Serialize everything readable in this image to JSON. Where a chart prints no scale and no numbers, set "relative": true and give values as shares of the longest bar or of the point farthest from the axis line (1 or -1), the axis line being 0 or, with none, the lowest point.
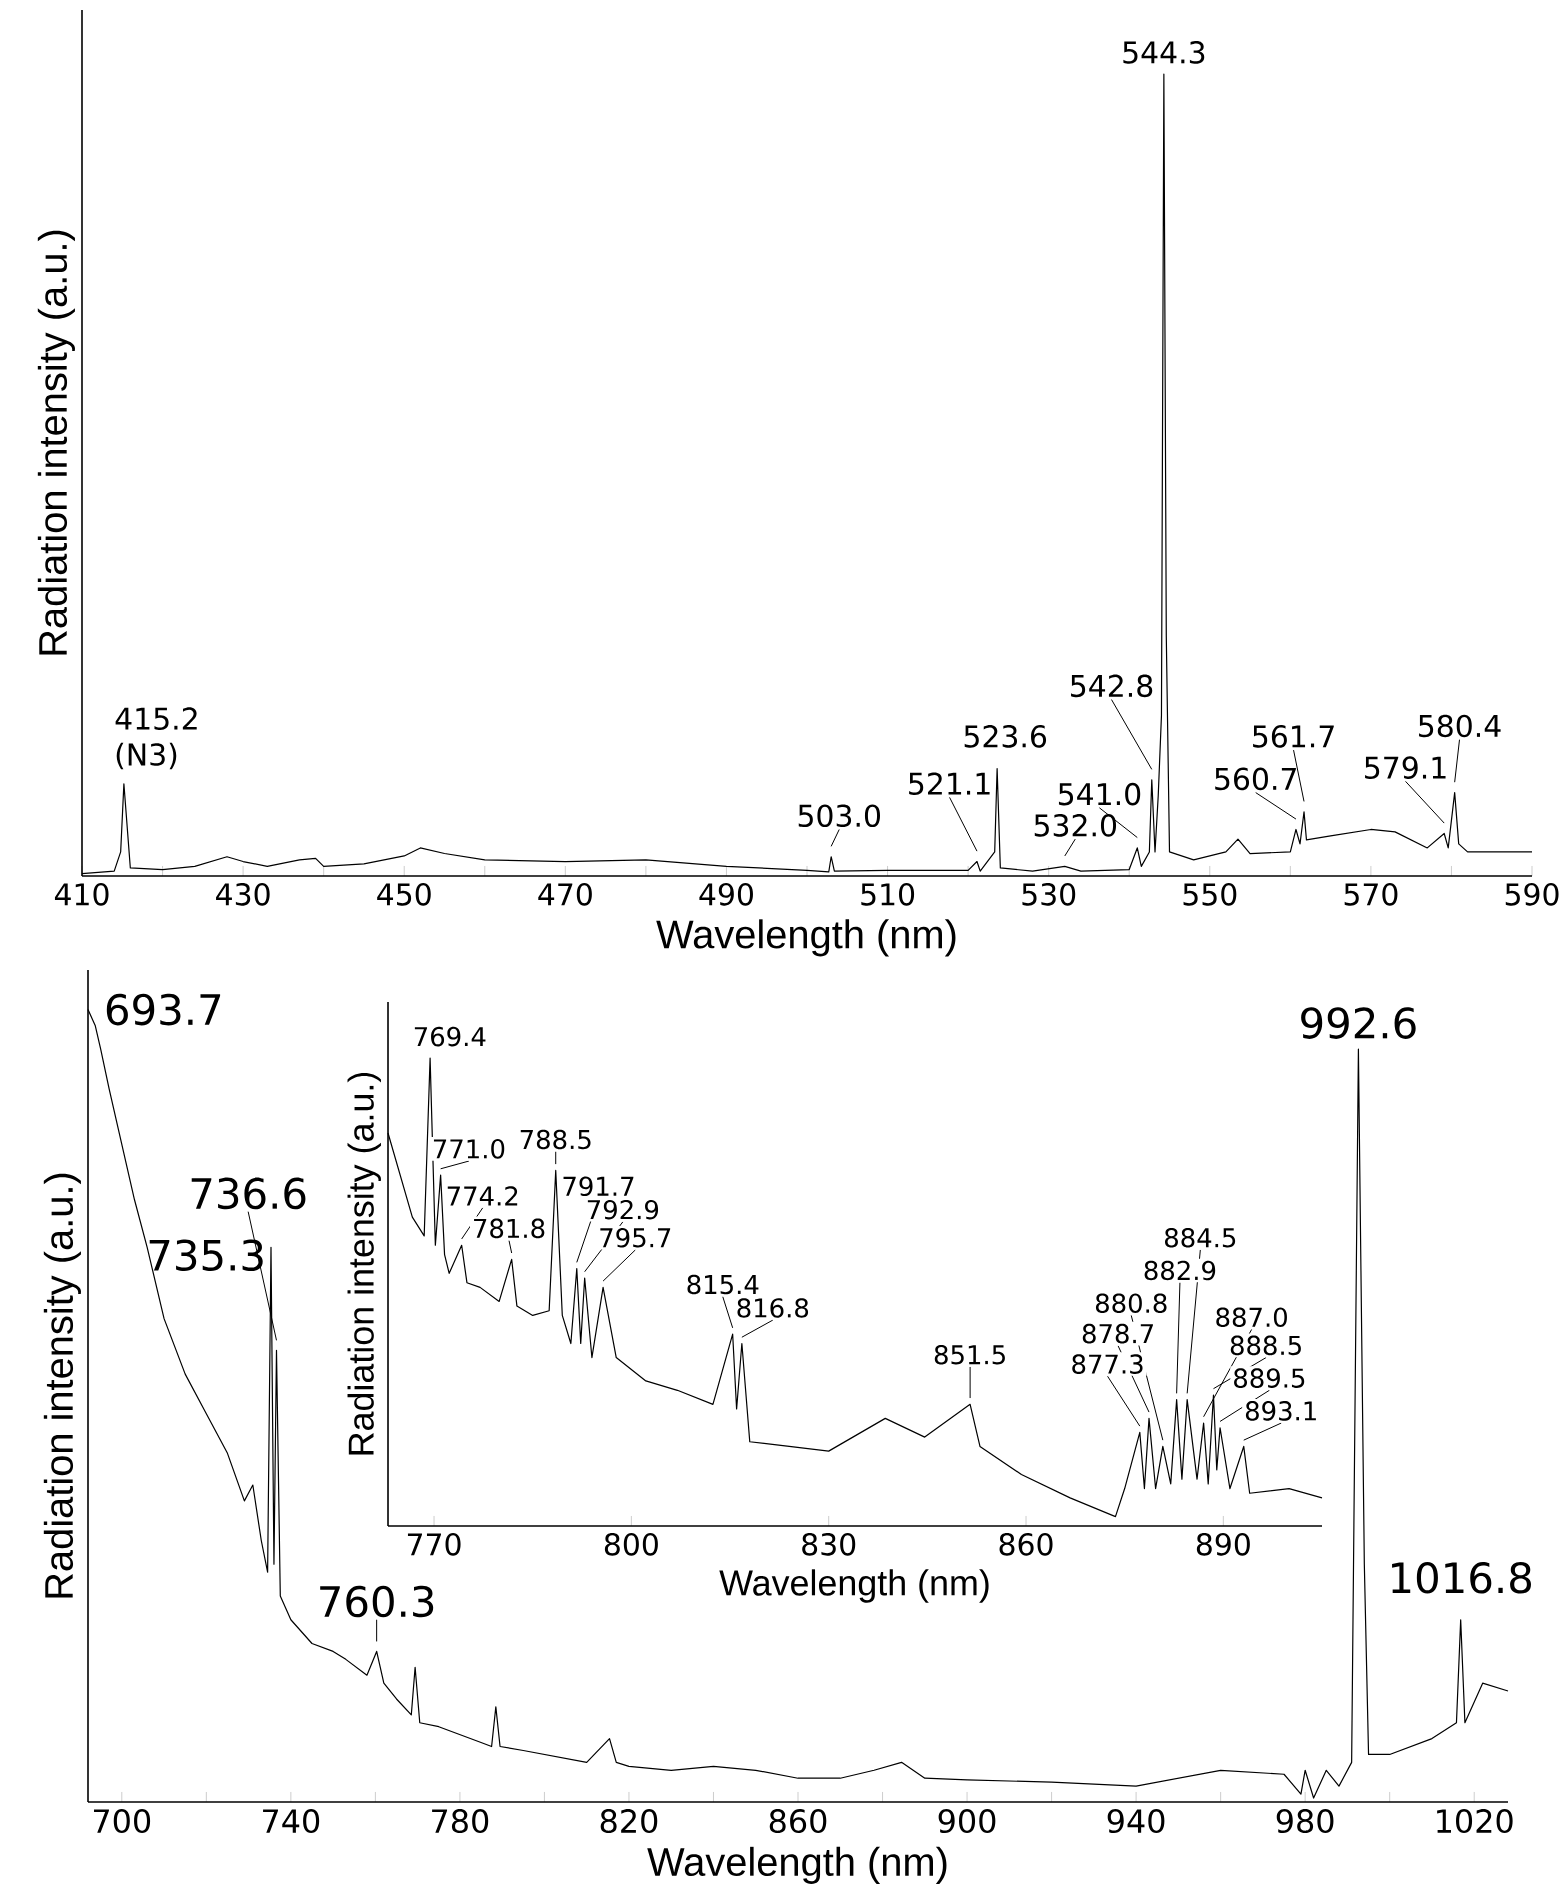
{
  "chart_data": [
    {
      "type": "line",
      "relative": true,
      "xlabel": "Wavelength (nm)",
      "ylabel": "Radiation intensity (a.u.)",
      "color": "#000000",
      "xlim": [
        410,
        590
      ],
      "xticks": [
        410,
        {
          "value": 420,
          "label": null
        },
        430,
        {
          "value": 440,
          "label": null
        },
        450,
        {
          "value": 460,
          "label": null
        },
        470,
        {
          "value": 480,
          "label": null
        },
        490,
        {
          "value": 500,
          "label": null
        },
        510,
        {
          "value": 520,
          "label": null
        },
        530,
        {
          "value": 540,
          "label": null
        },
        550,
        {
          "value": 560,
          "label": null
        },
        570,
        {
          "value": 580,
          "label": null
        },
        590
      ],
      "x": [
        410,
        414,
        414.8,
        415.2,
        416,
        420,
        424,
        428,
        430,
        433,
        437,
        439,
        440,
        445,
        450,
        452,
        455,
        460,
        470,
        480,
        490,
        500,
        502.7,
        503.0,
        503.4,
        510,
        520,
        521.1,
        521.5,
        523.3,
        523.6,
        524,
        528,
        532,
        534,
        540,
        541,
        541.5,
        542.5,
        542.8,
        543.2,
        543.6,
        544,
        544.3,
        544.6,
        545,
        548,
        552,
        553.5,
        555,
        560,
        560.7,
        561.2,
        561.7,
        562,
        565,
        570,
        573,
        577,
        579.1,
        579.6,
        580.4,
        580.9,
        582,
        590
      ],
      "values": [
        0.003,
        0.006,
        0.03,
        0.115,
        0.01,
        0.008,
        0.012,
        0.024,
        0.018,
        0.012,
        0.02,
        0.022,
        0.012,
        0.015,
        0.025,
        0.035,
        0.028,
        0.02,
        0.018,
        0.02,
        0.012,
        0.007,
        0.005,
        0.024,
        0.006,
        0.007,
        0.007,
        0.018,
        0.006,
        0.03,
        0.134,
        0.01,
        0.006,
        0.012,
        0.006,
        0.008,
        0.035,
        0.012,
        0.03,
        0.12,
        0.03,
        0.1,
        0.2,
        1,
        0.3,
        0.03,
        0.02,
        0.03,
        0.046,
        0.028,
        0.03,
        0.058,
        0.04,
        0.08,
        0.045,
        0.05,
        0.058,
        0.055,
        0.035,
        0.053,
        0.035,
        0.104,
        0.04,
        0.03,
        0.03
      ],
      "annotations": [
        {
          "text": "415.2 (N3)",
          "x": 415.2,
          "y": 0.115
        },
        {
          "text": "503.0",
          "x": 503.0,
          "y": 0.024
        },
        {
          "text": "521.1",
          "x": 521.1,
          "y": 0.018
        },
        {
          "text": "523.6",
          "x": 523.6,
          "y": 0.134
        },
        {
          "text": "532.0",
          "x": 532.0,
          "y": 0.012
        },
        {
          "text": "541.0",
          "x": 541.0,
          "y": 0.035
        },
        {
          "text": "542.8",
          "x": 542.8,
          "y": 0.12
        },
        {
          "text": "544.3",
          "x": 544.3,
          "y": 1
        },
        {
          "text": "560.7",
          "x": 560.7,
          "y": 0.058
        },
        {
          "text": "561.7",
          "x": 561.7,
          "y": 0.08
        },
        {
          "text": "579.1",
          "x": 579.1,
          "y": 0.053
        },
        {
          "text": "580.4",
          "x": 580.4,
          "y": 0.104
        }
      ]
    },
    {
      "type": "line",
      "relative": true,
      "xlabel": "Wavelength (nm)",
      "ylabel": "Radiation intensity (a.u.)",
      "color": "#000000",
      "xlim": [
        692,
        1028
      ],
      "xticks": [
        700,
        {
          "value": 720,
          "label": null
        },
        740,
        {
          "value": 760,
          "label": null
        },
        780,
        {
          "value": 800,
          "label": null
        },
        820,
        {
          "value": 840,
          "label": null
        },
        860,
        {
          "value": 880,
          "label": null
        },
        900,
        {
          "value": 920,
          "label": null
        },
        940,
        {
          "value": 960,
          "label": null
        },
        980,
        {
          "value": 1000,
          "label": null
        },
        1020
      ],
      "x": [
        692,
        693.7,
        695,
        697,
        700,
        703,
        706,
        710,
        715,
        720,
        725,
        729,
        731,
        733,
        734.5,
        735.3,
        736,
        736.6,
        737.5,
        740,
        745,
        750,
        753,
        758,
        760.3,
        762,
        765,
        768.5,
        769.4,
        770.5,
        775,
        780,
        785,
        787.5,
        788.5,
        789.5,
        795,
        800,
        810,
        815.4,
        817,
        820,
        830,
        840,
        850,
        860,
        870,
        878,
        884.5,
        890,
        900,
        920,
        940,
        960,
        975,
        979,
        980,
        982,
        985,
        988,
        991,
        992.6,
        994,
        995,
        1000,
        1010,
        1015.8,
        1016.8,
        1017.8,
        1022,
        1028
      ],
      "values": [
        1,
        0.98,
        0.95,
        0.9,
        0.83,
        0.76,
        0.7,
        0.61,
        0.54,
        0.49,
        0.44,
        0.38,
        0.4,
        0.33,
        0.29,
        0.7,
        0.3,
        0.57,
        0.26,
        0.23,
        0.2,
        0.19,
        0.18,
        0.16,
        0.19,
        0.15,
        0.13,
        0.11,
        0.17,
        0.1,
        0.095,
        0.085,
        0.075,
        0.07,
        0.12,
        0.07,
        0.065,
        0.06,
        0.05,
        0.08,
        0.05,
        0.045,
        0.04,
        0.045,
        0.04,
        0.03,
        0.03,
        0.04,
        0.05,
        0.03,
        0.028,
        0.025,
        0.02,
        0.04,
        0.035,
        0.01,
        0.04,
        0.005,
        0.04,
        0.02,
        0.05,
        0.95,
        0.3,
        0.06,
        0.06,
        0.08,
        0.1,
        0.23,
        0.1,
        0.15,
        0.14
      ],
      "annotations": [
        {
          "text": "693.7",
          "x": 693.7,
          "y": 0.98
        },
        {
          "text": "736.6",
          "x": 736.6,
          "y": 0.57
        },
        {
          "text": "735.3",
          "x": 735.3,
          "y": 0.7
        },
        {
          "text": "760.3",
          "x": 760.3,
          "y": 0.19
        },
        {
          "text": "992.6",
          "x": 992.6,
          "y": 0.95
        },
        {
          "text": "1016.8",
          "x": 1016.8,
          "y": 0.23
        }
      ]
    },
    {
      "type": "line",
      "relative": true,
      "xlabel": "Wavelength (nm)",
      "ylabel": "Radiation intensity (a.u.)",
      "color": "#000000",
      "xlim": [
        763,
        905
      ],
      "xticks": [
        770,
        800,
        830,
        860,
        890
      ],
      "x": [
        763,
        766.7,
        768.5,
        769.4,
        770.2,
        771,
        771.6,
        772.3,
        774.2,
        775,
        777,
        779.9,
        781.8,
        782.6,
        785,
        787.5,
        788.5,
        789.5,
        790.8,
        791.7,
        792.3,
        792.9,
        794,
        795.7,
        797.7,
        802.2,
        807,
        812.4,
        815.4,
        816,
        816.8,
        818,
        824,
        830,
        838.6,
        844.6,
        851.5,
        853,
        859.3,
        866.7,
        873.6,
        875,
        877.3,
        878,
        878.7,
        879.7,
        880.8,
        882,
        882.9,
        883.7,
        884.5,
        886,
        887,
        887.7,
        888.5,
        889,
        889.5,
        891,
        893.1,
        894,
        900,
        905
      ],
      "values": [
        0.84,
        0.66,
        0.62,
        1,
        0.6,
        0.75,
        0.58,
        0.54,
        0.6,
        0.52,
        0.51,
        0.48,
        0.57,
        0.47,
        0.45,
        0.46,
        0.76,
        0.45,
        0.39,
        0.55,
        0.39,
        0.53,
        0.36,
        0.51,
        0.36,
        0.31,
        0.29,
        0.26,
        0.41,
        0.25,
        0.39,
        0.18,
        0.17,
        0.16,
        0.23,
        0.19,
        0.26,
        0.17,
        0.11,
        0.06,
        0.02,
        0.08,
        0.2,
        0.08,
        0.23,
        0.08,
        0.17,
        0.09,
        0.27,
        0.1,
        0.27,
        0.1,
        0.22,
        0.09,
        0.28,
        0.12,
        0.21,
        0.08,
        0.17,
        0.07,
        0.08,
        0.06
      ],
      "annotations": [
        {
          "text": "769.4",
          "x": 769.4,
          "y": 1
        },
        {
          "text": "771.0",
          "x": 771.0,
          "y": 0.75
        },
        {
          "text": "774.2",
          "x": 774.2,
          "y": 0.6
        },
        {
          "text": "781.8",
          "x": 781.8,
          "y": 0.57
        },
        {
          "text": "788.5",
          "x": 788.5,
          "y": 0.76
        },
        {
          "text": "791.7",
          "x": 791.7,
          "y": 0.55
        },
        {
          "text": "792.9",
          "x": 792.9,
          "y": 0.53
        },
        {
          "text": "795.7",
          "x": 795.7,
          "y": 0.51
        },
        {
          "text": "815.4",
          "x": 815.4,
          "y": 0.41
        },
        {
          "text": "816.8",
          "x": 816.8,
          "y": 0.39
        },
        {
          "text": "851.5",
          "x": 851.5,
          "y": 0.26
        },
        {
          "text": "877.3",
          "x": 877.3,
          "y": 0.2
        },
        {
          "text": "878.7",
          "x": 878.7,
          "y": 0.23
        },
        {
          "text": "880.8",
          "x": 880.8,
          "y": 0.17
        },
        {
          "text": "882.9",
          "x": 882.9,
          "y": 0.27
        },
        {
          "text": "884.5",
          "x": 884.5,
          "y": 0.27
        },
        {
          "text": "887.0",
          "x": 887.0,
          "y": 0.22
        },
        {
          "text": "888.5",
          "x": 888.5,
          "y": 0.28
        },
        {
          "text": "889.5",
          "x": 889.5,
          "y": 0.21
        },
        {
          "text": "893.1",
          "x": 893.1,
          "y": 0.17
        }
      ]
    }
  ]
}
